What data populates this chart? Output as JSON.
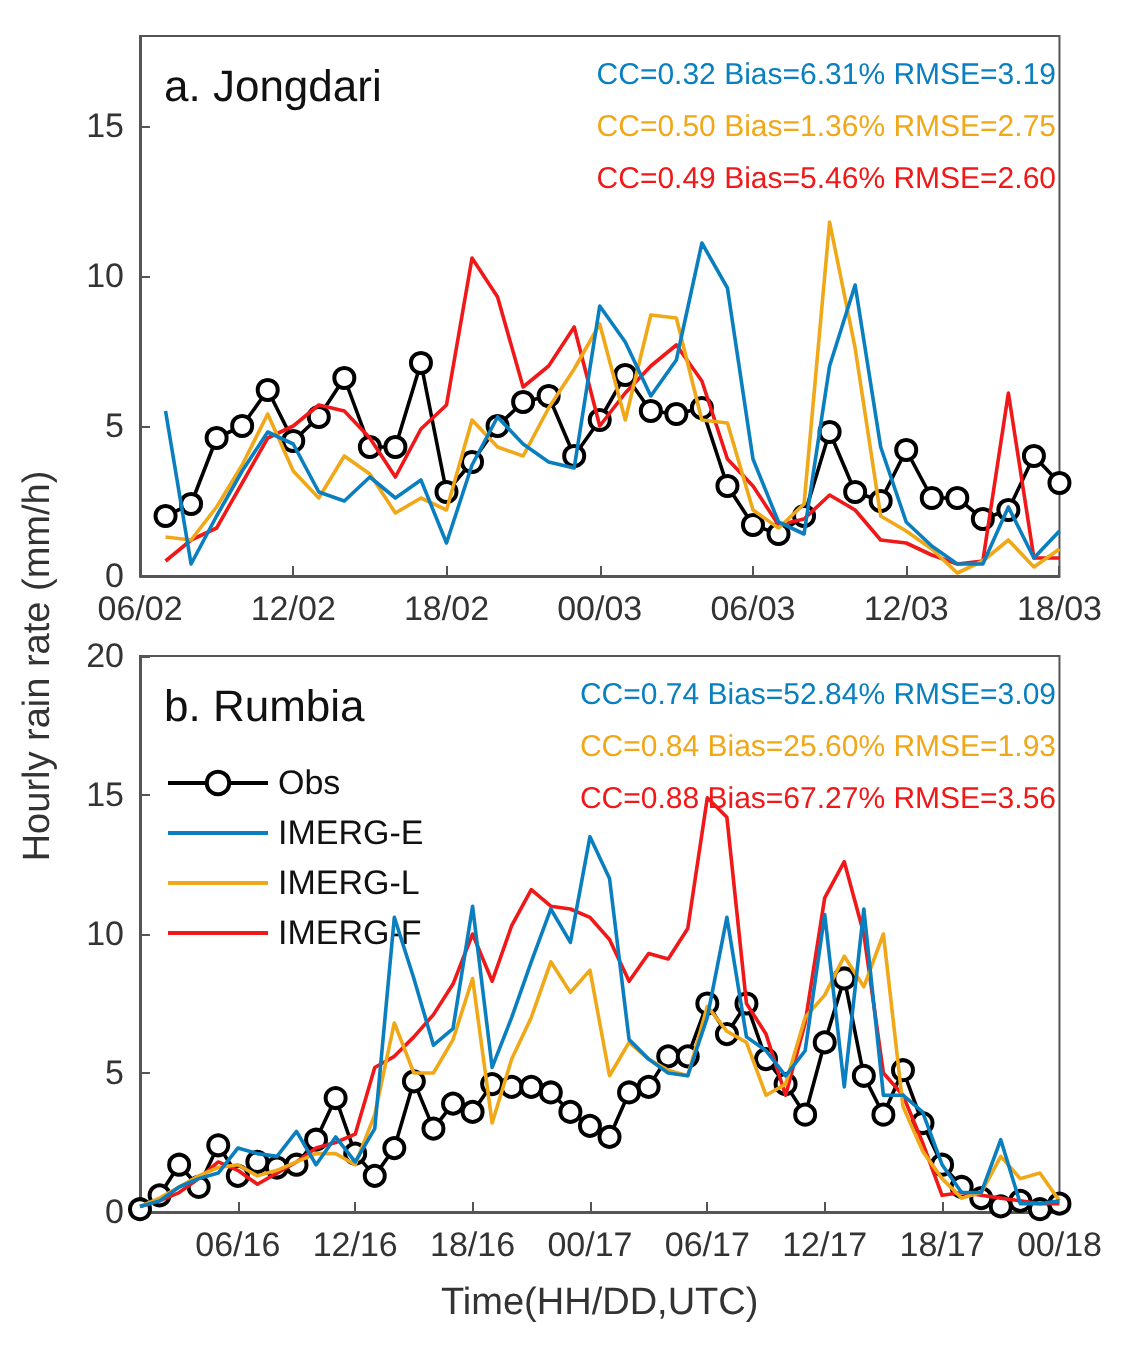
{
  "chart_data": [
    {
      "type": "line",
      "title": "a. Jongdari",
      "ylabel": "Hourly rain rate (mm/h)",
      "categories": [
        "06/02",
        null,
        null,
        null,
        null,
        null,
        "12/02",
        null,
        null,
        null,
        null,
        null,
        "18/02",
        null,
        null,
        null,
        null,
        null,
        "00/03",
        null,
        null,
        null,
        null,
        null,
        "06/03",
        null,
        null,
        null,
        null,
        null,
        "12/03",
        null,
        null,
        null,
        null,
        null,
        "18/03"
      ],
      "ylim": [
        0,
        18
      ],
      "yticks": [
        0,
        5,
        10,
        15
      ],
      "grid": false,
      "legend": false,
      "annotations": [
        "CC=0.32 Bias=6.31% RMSE=3.19",
        "CC=0.50 Bias=1.36% RMSE=2.75",
        "CC=0.49 Bias=5.46% RMSE=2.60"
      ],
      "series": [
        {
          "color": "#000000",
          "marker": "circle",
          "values": [
            null,
            2.0,
            2.4,
            4.6,
            5.0,
            6.2,
            4.5,
            5.3,
            6.6,
            4.3,
            4.3,
            7.1,
            2.8,
            3.8,
            5.0,
            5.8,
            6.0,
            4.0,
            5.2,
            6.7,
            5.5,
            5.4,
            5.6,
            3.0,
            1.7,
            1.4,
            2.0,
            4.8,
            2.8,
            2.5,
            4.2,
            2.6,
            2.6,
            1.9,
            2.2,
            4.0,
            3.1
          ]
        },
        {
          "color": "#0a7fc0",
          "marker": "none",
          "values": [
            null,
            5.5,
            0.4,
            2.0,
            3.5,
            4.8,
            4.4,
            2.8,
            2.5,
            3.3,
            2.6,
            3.2,
            1.1,
            3.7,
            5.3,
            4.4,
            3.8,
            3.6,
            9.0,
            7.8,
            6.0,
            7.2,
            11.1,
            9.6,
            3.9,
            1.8,
            1.4,
            7.0,
            9.7,
            4.3,
            1.8,
            1.0,
            0.4,
            0.4,
            2.3,
            0.6,
            1.5
          ]
        },
        {
          "color": "#f0a818",
          "marker": "none",
          "values": [
            null,
            1.3,
            1.2,
            2.3,
            3.7,
            5.4,
            3.5,
            2.6,
            4.0,
            3.4,
            2.1,
            2.6,
            2.2,
            5.2,
            4.3,
            4.0,
            5.6,
            6.9,
            8.4,
            5.2,
            8.7,
            8.6,
            5.2,
            5.1,
            2.2,
            1.6,
            2.4,
            11.8,
            7.6,
            2.0,
            1.5,
            0.9,
            0.1,
            0.5,
            1.2,
            0.3,
            0.9
          ]
        },
        {
          "color": "#f01818",
          "marker": "none",
          "values": [
            null,
            0.5,
            1.2,
            1.6,
            3.1,
            4.6,
            5.0,
            5.7,
            5.5,
            4.6,
            3.3,
            4.9,
            5.7,
            10.6,
            9.3,
            6.3,
            7.0,
            8.3,
            5.0,
            6.1,
            7.0,
            7.7,
            6.5,
            3.9,
            3.0,
            1.7,
            1.9,
            2.7,
            2.2,
            1.2,
            1.1,
            0.7,
            0.4,
            0.5,
            6.1,
            0.6,
            0.6
          ]
        }
      ]
    },
    {
      "type": "line",
      "title": "b. Rumbia",
      "xlabel": "Time(HH/DD,UTC)",
      "categories": [
        null,
        null,
        null,
        null,
        null,
        "06/16",
        null,
        null,
        null,
        null,
        null,
        "12/16",
        null,
        null,
        null,
        null,
        null,
        "18/16",
        null,
        null,
        null,
        null,
        null,
        "00/17",
        null,
        null,
        null,
        null,
        null,
        "06/17",
        null,
        null,
        null,
        null,
        null,
        "12/17",
        null,
        null,
        null,
        null,
        null,
        "18/17",
        null,
        null,
        null,
        null,
        null,
        "00/18"
      ],
      "ylim": [
        0,
        20
      ],
      "yticks": [
        0,
        5,
        10,
        15,
        20
      ],
      "grid": false,
      "legend": "top left",
      "annotations": [
        "CC=0.74 Bias=52.84% RMSE=3.09",
        "CC=0.84 Bias=25.60% RMSE=1.93",
        "CC=0.88 Bias=67.27% RMSE=3.56"
      ],
      "series": [
        {
          "name": "Obs",
          "color": "#000000",
          "marker": "circle",
          "values": [
            0.1,
            0.6,
            1.7,
            0.9,
            2.4,
            1.3,
            1.8,
            1.6,
            1.7,
            2.6,
            4.1,
            2.1,
            1.3,
            2.3,
            4.7,
            3.0,
            3.9,
            3.6,
            4.6,
            4.5,
            4.5,
            4.3,
            3.6,
            3.1,
            2.7,
            4.3,
            4.5,
            5.6,
            5.6,
            7.5,
            6.4,
            7.5,
            5.5,
            4.6,
            3.5,
            6.1,
            8.4,
            4.9,
            3.5,
            5.1,
            3.2,
            1.7,
            0.9,
            0.5,
            0.2,
            0.4,
            0.1,
            0.3
          ]
        },
        {
          "name": "IMERG-E",
          "color": "#0a7fc0",
          "marker": "none",
          "values": [
            0.2,
            0.4,
            0.9,
            1.2,
            1.4,
            2.3,
            2.1,
            2.0,
            2.9,
            1.7,
            2.7,
            1.8,
            3.0,
            10.6,
            8.4,
            6.0,
            6.6,
            11.0,
            5.2,
            7.0,
            9.0,
            10.9,
            9.7,
            13.5,
            12.0,
            6.2,
            5.5,
            5.0,
            4.9,
            7.0,
            10.6,
            6.3,
            5.8,
            4.9,
            5.8,
            10.7,
            4.5,
            10.9,
            4.2,
            4.2,
            3.6,
            1.7,
            0.7,
            0.7,
            2.6,
            0.3,
            0.3,
            0.4
          ]
        },
        {
          "name": "IMERG-L",
          "color": "#f0a818",
          "marker": "none",
          "values": [
            0.2,
            0.5,
            0.9,
            1.3,
            1.6,
            1.7,
            1.3,
            1.5,
            1.8,
            2.1,
            2.1,
            1.7,
            3.5,
            6.8,
            5.0,
            5.0,
            6.2,
            8.4,
            3.2,
            5.5,
            7.0,
            9.0,
            7.9,
            8.7,
            4.9,
            6.1,
            5.5,
            5.1,
            4.9,
            7.4,
            6.5,
            6.1,
            4.2,
            4.6,
            7.0,
            7.8,
            9.2,
            8.1,
            10.0,
            3.8,
            2.2,
            1.2,
            0.5,
            0.7,
            2.0,
            1.2,
            1.4,
            0.4
          ]
        },
        {
          "name": "IMERG-F",
          "color": "#f01818",
          "marker": "none",
          "values": [
            0.2,
            0.4,
            0.7,
            1.2,
            1.8,
            1.5,
            1.0,
            1.4,
            1.8,
            2.3,
            2.5,
            2.8,
            5.2,
            5.6,
            6.3,
            7.1,
            8.2,
            10.0,
            8.3,
            10.3,
            11.6,
            11.0,
            10.9,
            10.6,
            9.8,
            8.3,
            9.3,
            9.1,
            10.2,
            14.9,
            14.2,
            7.5,
            6.4,
            4.2,
            6.8,
            11.3,
            12.6,
            10.0,
            5.0,
            4.2,
            2.5,
            0.6,
            0.7,
            0.6,
            0.5,
            0.4,
            0.3,
            0.3
          ]
        }
      ]
    }
  ]
}
